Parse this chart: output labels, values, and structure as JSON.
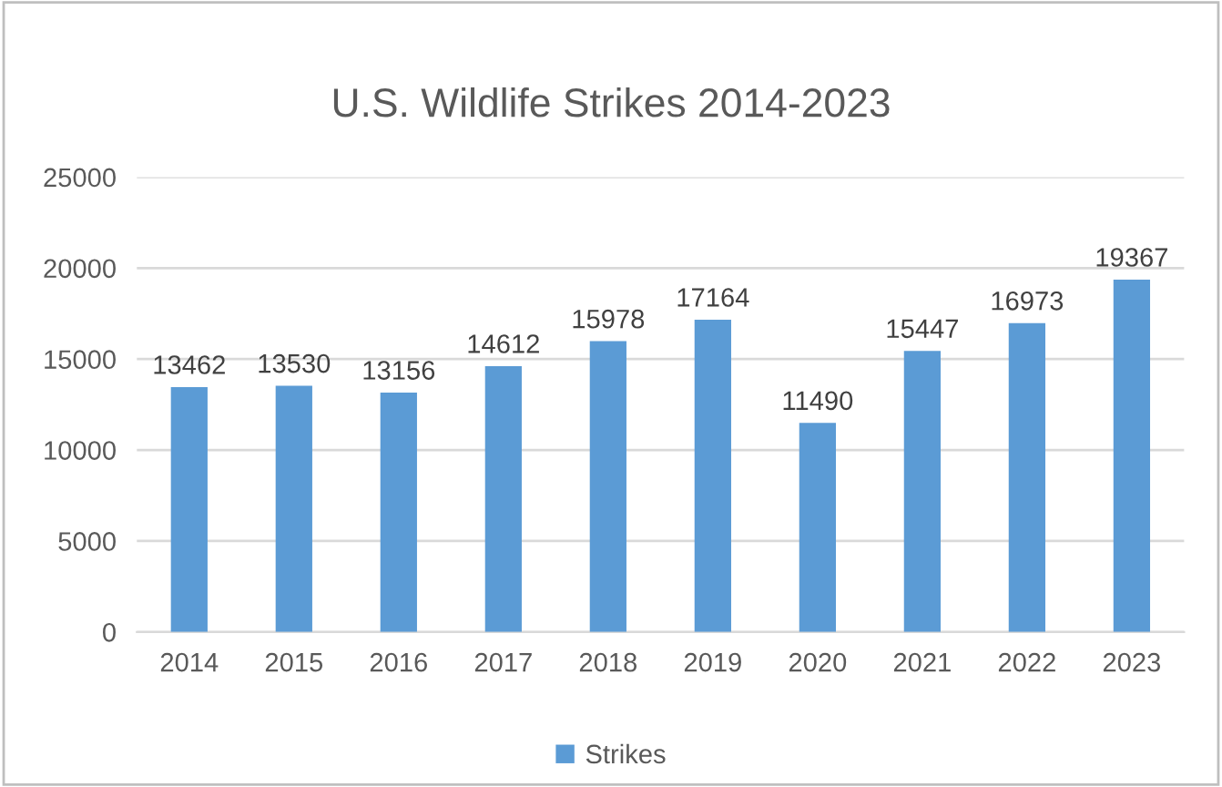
{
  "chart_data": {
    "type": "bar",
    "title": "U.S. Wildlife Strikes 2014-2023",
    "categories": [
      "2014",
      "2015",
      "2016",
      "2017",
      "2018",
      "2019",
      "2020",
      "2021",
      "2022",
      "2023"
    ],
    "series": [
      {
        "name": "Strikes",
        "color": "#5b9bd5",
        "values": [
          13462,
          13530,
          13156,
          14612,
          15978,
          17164,
          11490,
          15447,
          16973,
          19367
        ]
      }
    ],
    "ylim": [
      0,
      25000
    ],
    "yticks": [
      0,
      5000,
      10000,
      15000,
      20000,
      25000
    ],
    "grid": "y",
    "legend": "bottom",
    "data_labels": true
  }
}
